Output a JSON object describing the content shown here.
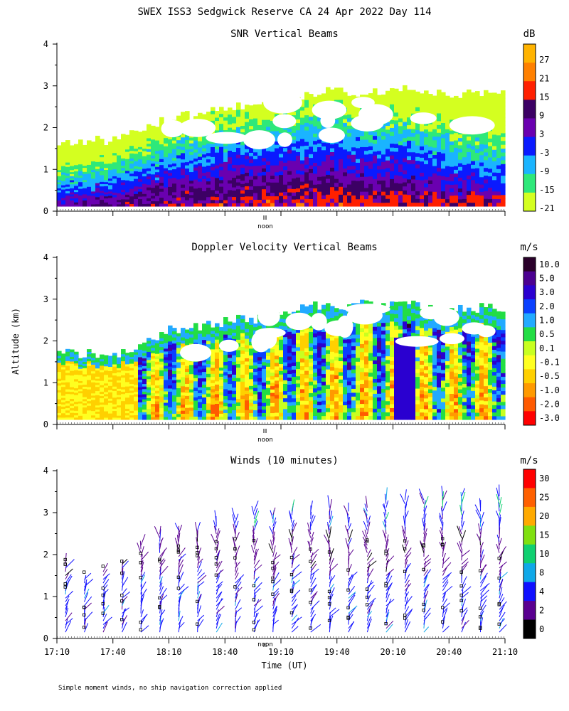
{
  "title": "SWEX ISS3 Sedgwick Reserve CA  24 Apr 2022 Day 114",
  "ylabel": "Altitude (km)",
  "xlabel": "Time (UT)",
  "noon": "noon",
  "footnote": "Simple moment winds, no ship navigation correction applied",
  "chart_data": [
    {
      "type": "heatmap",
      "title": "SNR Vertical Beams",
      "ylim": [
        0,
        4
      ],
      "yticks": [
        "0",
        "1",
        "2",
        "3",
        "4"
      ],
      "colorbar": {
        "unit": "dB",
        "labels": [
          "27",
          "21",
          "15",
          "9",
          "3",
          "-3",
          "-9",
          "-15",
          "-21"
        ],
        "colors": [
          "#ffb300",
          "#ff8000",
          "#ff2000",
          "#3c0064",
          "#6a00b0",
          "#0a1aff",
          "#1ab4ff",
          "#2ee87a",
          "#d4ff20"
        ]
      },
      "cloud_top_km": [
        1.7,
        1.7,
        1.7,
        1.7,
        1.9,
        2.1,
        2.3,
        2.3,
        2.4,
        2.5,
        2.5,
        2.6,
        2.7,
        2.8,
        2.9,
        2.8,
        2.9,
        2.9,
        2.9,
        2.8,
        2.8,
        2.8,
        2.8,
        2.8
      ]
    },
    {
      "type": "heatmap",
      "title": "Doppler Velocity Vertical Beams",
      "ylim": [
        0,
        4
      ],
      "yticks": [
        "0",
        "1",
        "2",
        "3",
        "4"
      ],
      "colorbar": {
        "unit": "m/s",
        "labels": [
          "10.0",
          "5.0",
          "3.0",
          "2.0",
          "1.0",
          "0.5",
          "0.1",
          "-0.1",
          "-0.5",
          "-1.0",
          "-2.0",
          "-3.0"
        ],
        "colors": [
          "#2a002a",
          "#4b0090",
          "#2a00d0",
          "#0a40ff",
          "#22aaff",
          "#22dd44",
          "#c8ff20",
          "#ffff20",
          "#ffd000",
          "#ff9a00",
          "#ff5a00",
          "#ff0000"
        ]
      },
      "cloud_top_km": [
        1.7,
        1.7,
        1.7,
        1.7,
        1.9,
        2.1,
        2.3,
        2.3,
        2.4,
        2.5,
        2.5,
        2.6,
        2.7,
        2.8,
        2.9,
        2.8,
        2.9,
        2.9,
        2.9,
        2.8,
        2.8,
        2.8,
        2.8,
        2.8
      ]
    },
    {
      "type": "scatter",
      "title": "Winds (10 minutes)",
      "ylim": [
        0,
        4
      ],
      "yticks": [
        "0",
        "1",
        "2",
        "3",
        "4"
      ],
      "xticks": [
        "17:10",
        "17:40",
        "18:10",
        "18:40",
        "19:10",
        "19:40",
        "20:10",
        "20:40",
        "21:10"
      ],
      "colorbar": {
        "unit": "m/s",
        "labels": [
          "30",
          "25",
          "20",
          "15",
          "10",
          "8",
          "4",
          "2",
          "0"
        ],
        "colors": [
          "#ff0000",
          "#ff6000",
          "#ffaa00",
          "#80e010",
          "#10d070",
          "#10a8e8",
          "#1010ff",
          "#5a0090",
          "#000000"
        ]
      },
      "profile_top_km": [
        1.8,
        1.5,
        1.6,
        1.8,
        2.3,
        2.5,
        2.6,
        2.6,
        2.8,
        2.9,
        3.1,
        3.0,
        3.1,
        3.1,
        3.2,
        3.1,
        3.2,
        3.3,
        3.3,
        3.3,
        3.4,
        3.4,
        3.2,
        3.4
      ]
    }
  ]
}
